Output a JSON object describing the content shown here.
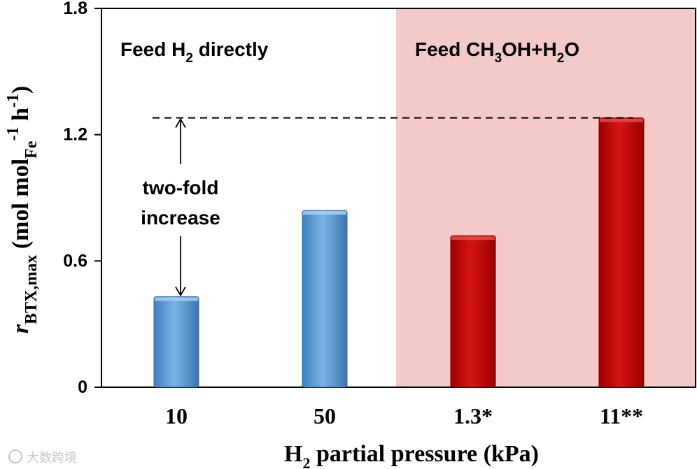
{
  "chart_data": {
    "type": "bar",
    "categories": [
      "10",
      "50",
      "1.3*",
      "11**"
    ],
    "values": [
      0.43,
      0.84,
      0.72,
      1.28
    ],
    "bar_colors": [
      "#5b9bd5",
      "#5b9bd5",
      "#c00000",
      "#c00000"
    ],
    "ylim": [
      0,
      1.8
    ],
    "yticks": [
      "0",
      "0.6",
      "1.2",
      "1.8"
    ],
    "ytick_values": [
      0,
      0.6,
      1.2,
      1.8
    ],
    "ylabel": {
      "r": "r",
      "sub": "BTX,max",
      "open": " (mol mol",
      "fe": "Fe",
      "minus1": "-1",
      "h": " h",
      "minus1b": "-1",
      "close": ")"
    },
    "xlabel": {
      "h": "H",
      "two": "2",
      "rest": " partial pressure (kPa)"
    },
    "regions": [
      {
        "name": "direct-h2",
        "label_parts": {
          "a": "Feed H",
          "b": "2",
          "c": " directly"
        },
        "color": "#ffffff"
      },
      {
        "name": "methanol-water",
        "label_parts": {
          "a": "Feed CH",
          "b": "3",
          "c": "OH+H",
          "d": "2",
          "e": "O"
        },
        "color": "#f4c9ca"
      }
    ],
    "annotation": {
      "line1": "two-fold",
      "line2": "increase",
      "from_value": 0.43,
      "to_value": 1.28
    }
  },
  "watermark": "大数跨境"
}
